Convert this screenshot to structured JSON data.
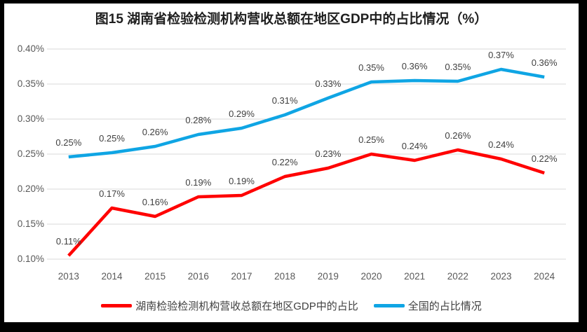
{
  "window": {
    "background_color": "#000000",
    "chart_background_color": "#ffffff"
  },
  "chart_data": {
    "type": "line",
    "title": "图15 湖南省检验检测机构营收总额在地区GDP中的占比情况（%）",
    "categories": [
      "2013",
      "2014",
      "2015",
      "2016",
      "2017",
      "2018",
      "2019",
      "2020",
      "2021",
      "2022",
      "2023",
      "2024"
    ],
    "series": [
      {
        "id": "hunan",
        "name": "湖南检验检测机构营收总额在地区GDP中的占比",
        "color": "#FF0000",
        "values": [
          0.11,
          0.17,
          0.16,
          0.19,
          0.19,
          0.22,
          0.23,
          0.25,
          0.24,
          0.26,
          0.24,
          0.22
        ],
        "labels": [
          "0.11%",
          "0.17%",
          "0.16%",
          "0.19%",
          "0.19%",
          "0.22%",
          "0.23%",
          "0.25%",
          "0.24%",
          "0.26%",
          "0.24%",
          "0.22%"
        ],
        "plot_values": [
          0.105,
          0.173,
          0.161,
          0.189,
          0.191,
          0.218,
          0.23,
          0.25,
          0.241,
          0.256,
          0.243,
          0.223
        ]
      },
      {
        "id": "national",
        "name": "全国的占比情况",
        "color": "#0FA5E4",
        "values": [
          0.25,
          0.25,
          0.26,
          0.28,
          0.29,
          0.31,
          0.33,
          0.35,
          0.36,
          0.35,
          0.37,
          0.36
        ],
        "labels": [
          "0.25%",
          "0.25%",
          "0.26%",
          "0.28%",
          "0.29%",
          "0.31%",
          "0.33%",
          "0.35%",
          "0.36%",
          "0.35%",
          "0.37%",
          "0.36%"
        ],
        "plot_values": [
          0.246,
          0.252,
          0.261,
          0.278,
          0.287,
          0.306,
          0.33,
          0.353,
          0.355,
          0.354,
          0.371,
          0.36
        ]
      }
    ],
    "xlabel": "",
    "ylabel": "",
    "unit": "%",
    "y_axis": {
      "min": 0.1,
      "max": 0.4,
      "step": 0.05,
      "tick_labels": [
        "0.40%",
        "0.35%",
        "0.30%",
        "0.25%",
        "0.20%",
        "0.15%",
        "0.10%"
      ]
    },
    "grid": true,
    "legend_position": "bottom",
    "colors": {
      "gridline": "#D9D9D9",
      "axis_text": "#595959",
      "data_label": "#404040",
      "title_text": "#1f1f1f",
      "legend_text": "#404040"
    }
  }
}
